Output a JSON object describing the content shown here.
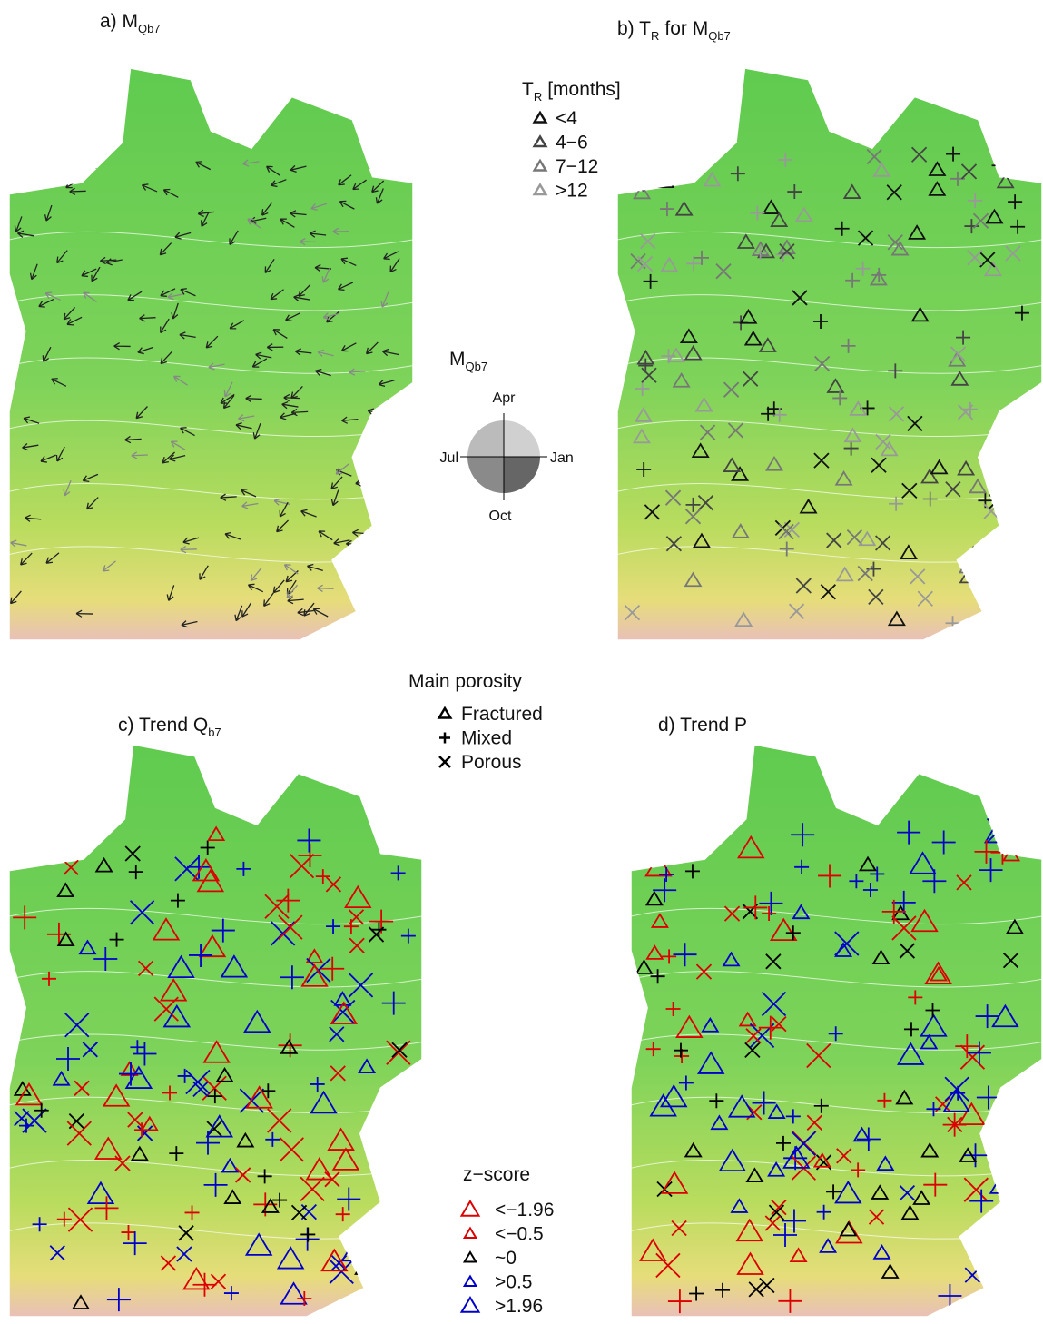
{
  "panels": [
    {
      "label": "a) M",
      "label_sub": "Qb7"
    },
    {
      "label": "b) T",
      "label_sub": "R",
      "label_rest": "for  M",
      "label_sub2": "Qb7"
    },
    {
      "label": "c) Trend Q",
      "label_sub": "b7"
    },
    {
      "label": "d) Trend P"
    }
  ],
  "tr_legend": {
    "title": "T",
    "title_sub": "R",
    "title_rest": "[months]",
    "items": [
      "<4",
      "4−6",
      "7−12",
      ">12"
    ]
  },
  "compass": {
    "title": "M",
    "title_sub": "Qb7",
    "north": "Apr",
    "east": "Jan",
    "south": "Oct",
    "west": "Jul"
  },
  "porosity_legend": {
    "title": "Main porosity",
    "items": [
      "Fractured",
      "Mixed",
      "Porous"
    ]
  },
  "z_legend": {
    "title": "z−score",
    "items": [
      "<−1.96",
      "<−0.5",
      "~0",
      ">0.5",
      ">1.96"
    ]
  }
}
